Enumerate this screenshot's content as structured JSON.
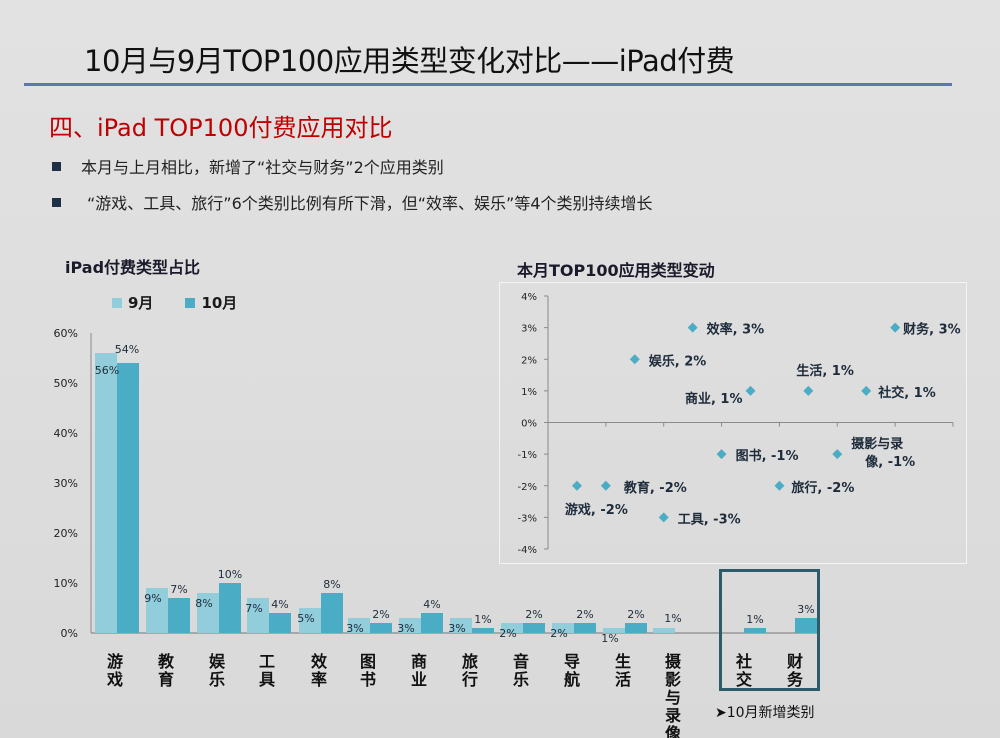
{
  "header": {
    "title": "10月与9月TOP100应用类型变化对比——iPad付费",
    "section_title": "四、iPad TOP100付费应用对比",
    "bullets": [
      "本月与上月相比，新增了“社交与财务”2个应用类别",
      "“游戏、工具、旅行”6个类别比例有所下滑，但“效率、娱乐”等4个类别持续增长"
    ]
  },
  "colors": {
    "sep": "#92cddc",
    "oct": "#4bacc6",
    "title_red": "#c00000",
    "rule": "#5b78a8",
    "marker": "#4bacc6",
    "new_box": "#2d5b6a"
  },
  "new_categories_note": "➤10月新增类别",
  "chart_data": [
    {
      "type": "bar",
      "title": "iPad付费类型占比",
      "legend": [
        "9月",
        "10月"
      ],
      "legend_position": "top-left",
      "categories": [
        "游戏",
        "教育",
        "娱乐",
        "工具",
        "效率",
        "图书",
        "商业",
        "旅行",
        "音乐",
        "导航",
        "生活",
        "摄影与录像",
        "社交",
        "财务"
      ],
      "series": [
        {
          "name": "9月",
          "values": [
            56,
            9,
            8,
            7,
            5,
            3,
            3,
            3,
            2,
            2,
            1,
            1,
            null,
            null
          ],
          "labels": [
            "56%",
            "9%",
            "8%",
            "7%",
            "5%",
            "3%",
            "3%",
            "3%",
            "2%",
            "2%",
            "1%",
            "1%",
            "",
            ""
          ]
        },
        {
          "name": "10月",
          "values": [
            54,
            7,
            10,
            4,
            8,
            2,
            4,
            1,
            2,
            2,
            2,
            null,
            1,
            3
          ],
          "labels": [
            "54%",
            "7%",
            "10%",
            "4%",
            "8%",
            "2%",
            "4%",
            "1%",
            "2%",
            "2%",
            "2%",
            "",
            "1%",
            "3%"
          ]
        }
      ],
      "ylim": [
        0,
        60
      ],
      "yticks": [
        "0%",
        "10%",
        "20%",
        "30%",
        "40%",
        "50%",
        "60%"
      ],
      "ytick_values": [
        0,
        10,
        20,
        30,
        40,
        50,
        60
      ],
      "xlabel": "",
      "ylabel": "",
      "grid": false
    },
    {
      "type": "scatter",
      "title": "本月TOP100应用类型变动",
      "x": [
        0.5,
        1,
        1.5,
        2,
        2.5,
        3,
        3.5,
        4,
        4.5,
        5,
        5.5,
        6
      ],
      "y": [
        -2,
        -2,
        2,
        -3,
        3,
        -1,
        1,
        -2,
        1,
        -1,
        1,
        3
      ],
      "point_labels": [
        "游戏, -2%",
        "教育, -2%",
        "娱乐, 2%",
        "工具, -3%",
        "效率, 3%",
        "图书, -1%",
        "商业, 1%",
        "旅行, -2%",
        "生活, 1%",
        "摄影与录像, -1%",
        "社交, 1%",
        "财务, 3%"
      ],
      "xlim": [
        0,
        7
      ],
      "ylim": [
        -4,
        4
      ],
      "yticks": [
        "-4%",
        "-3%",
        "-2%",
        "-1%",
        "0%",
        "1%",
        "2%",
        "3%",
        "4%"
      ],
      "ytick_values": [
        -4,
        -3,
        -2,
        -1,
        0,
        1,
        2,
        3,
        4
      ],
      "xlabel": "",
      "ylabel": "",
      "grid": false
    }
  ]
}
